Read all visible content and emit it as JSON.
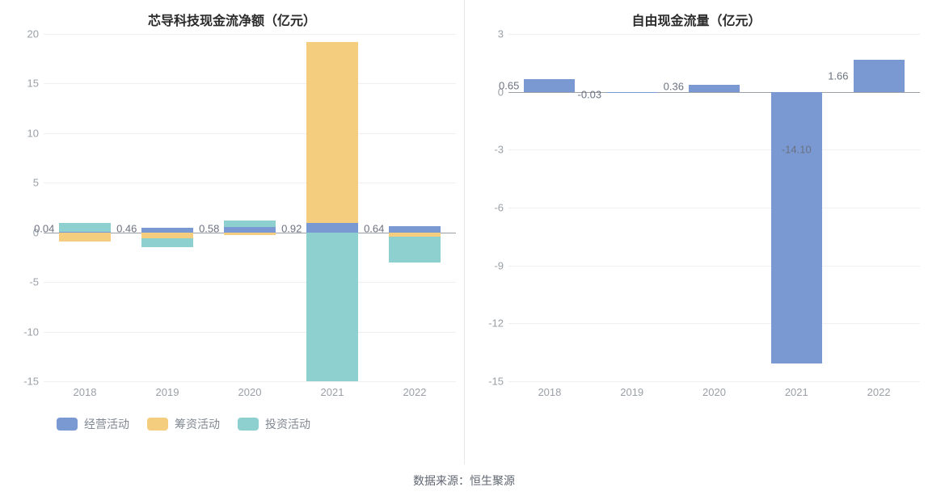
{
  "footer_text": "数据来源：恒生聚源",
  "colors": {
    "grid": "#efefef",
    "axis_text": "#9aa0a6",
    "zero_line": "#9aa0a6",
    "title_text": "#2b2b2b",
    "label_text": "#6b7280"
  },
  "left_chart": {
    "type": "stacked-bar",
    "title": "芯导科技现金流净额（亿元）",
    "categories": [
      "2018",
      "2019",
      "2020",
      "2021",
      "2022"
    ],
    "ylim": [
      -15,
      20
    ],
    "ytick_step": 5,
    "bar_width": 0.62,
    "label_fontsize": 13,
    "series": [
      {
        "name": "经营活动",
        "color": "#7a99d3",
        "values": [
          0.04,
          0.46,
          0.58,
          0.92,
          0.64
        ]
      },
      {
        "name": "筹资活动",
        "color": "#f4cd7e",
        "values": [
          -0.9,
          -0.6,
          -0.3,
          18.3,
          -0.4
        ]
      },
      {
        "name": "投资活动",
        "color": "#8ed0cf",
        "values": [
          0.9,
          -0.9,
          0.6,
          -15.0,
          -2.6
        ]
      }
    ],
    "value_labels": [
      "0.04",
      "0.46",
      "0.58",
      "0.92",
      "0.64"
    ],
    "legend": [
      {
        "label": "经营活动",
        "color": "#7a99d3"
      },
      {
        "label": "筹资活动",
        "color": "#f4cd7e"
      },
      {
        "label": "投资活动",
        "color": "#8ed0cf"
      }
    ]
  },
  "right_chart": {
    "type": "bar",
    "title": "自由现金流量（亿元）",
    "categories": [
      "2018",
      "2019",
      "2020",
      "2021",
      "2022"
    ],
    "ylim": [
      -15,
      3
    ],
    "ytick_step": 3,
    "bar_width": 0.62,
    "bar_color": "#7a99d3",
    "label_fontsize": 13,
    "values": [
      0.65,
      -0.03,
      0.36,
      -14.1,
      1.66
    ],
    "value_labels": [
      "0.65",
      "-0.03",
      "0.36",
      "-14.10",
      "1.66"
    ]
  }
}
